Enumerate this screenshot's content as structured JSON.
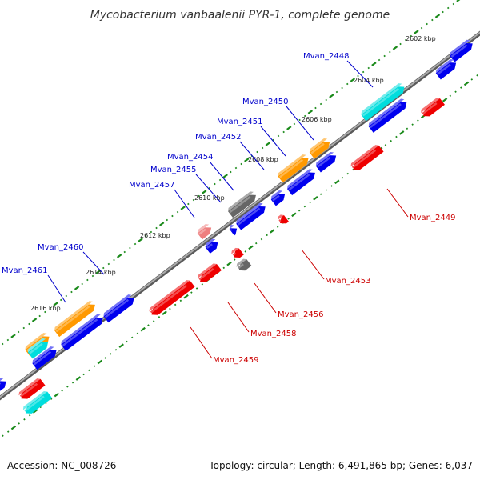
{
  "title": "Mycobacterium vanbaalenii PYR-1, complete genome",
  "footer": {
    "accession": "Accession: NC_008726",
    "summary": "Topology: circular; Length: 6,491,865 bp; Genes: 6,037"
  },
  "colors": {
    "backbone": "#8c8c8c",
    "forward_label": "#0000cc",
    "reverse_label": "#cc0000",
    "dots": "#1a8a1a",
    "gene_colors": {
      "blue": "#0000ee",
      "red": "#ee0000",
      "orange": "#ff9900",
      "cyan": "#00dddd",
      "gray": "#666666",
      "pink": "#ee7f7f"
    }
  },
  "ticks": [
    "2602 kbp",
    "2604 kbp",
    "2606 kbp",
    "2608 kbp",
    "2610 kbp",
    "2612 kbp",
    "2614 kbp",
    "2616 kbp"
  ],
  "gene_labels": {
    "forward": [
      "Mvan_2448",
      "Mvan_2450",
      "Mvan_2451",
      "Mvan_2452",
      "Mvan_2454",
      "Mvan_2455",
      "Mvan_2457",
      "Mvan_2460",
      "Mvan_2461"
    ],
    "reverse": [
      "Mvan_2449",
      "Mvan_2453",
      "Mvan_2456",
      "Mvan_2458",
      "Mvan_2459"
    ]
  }
}
